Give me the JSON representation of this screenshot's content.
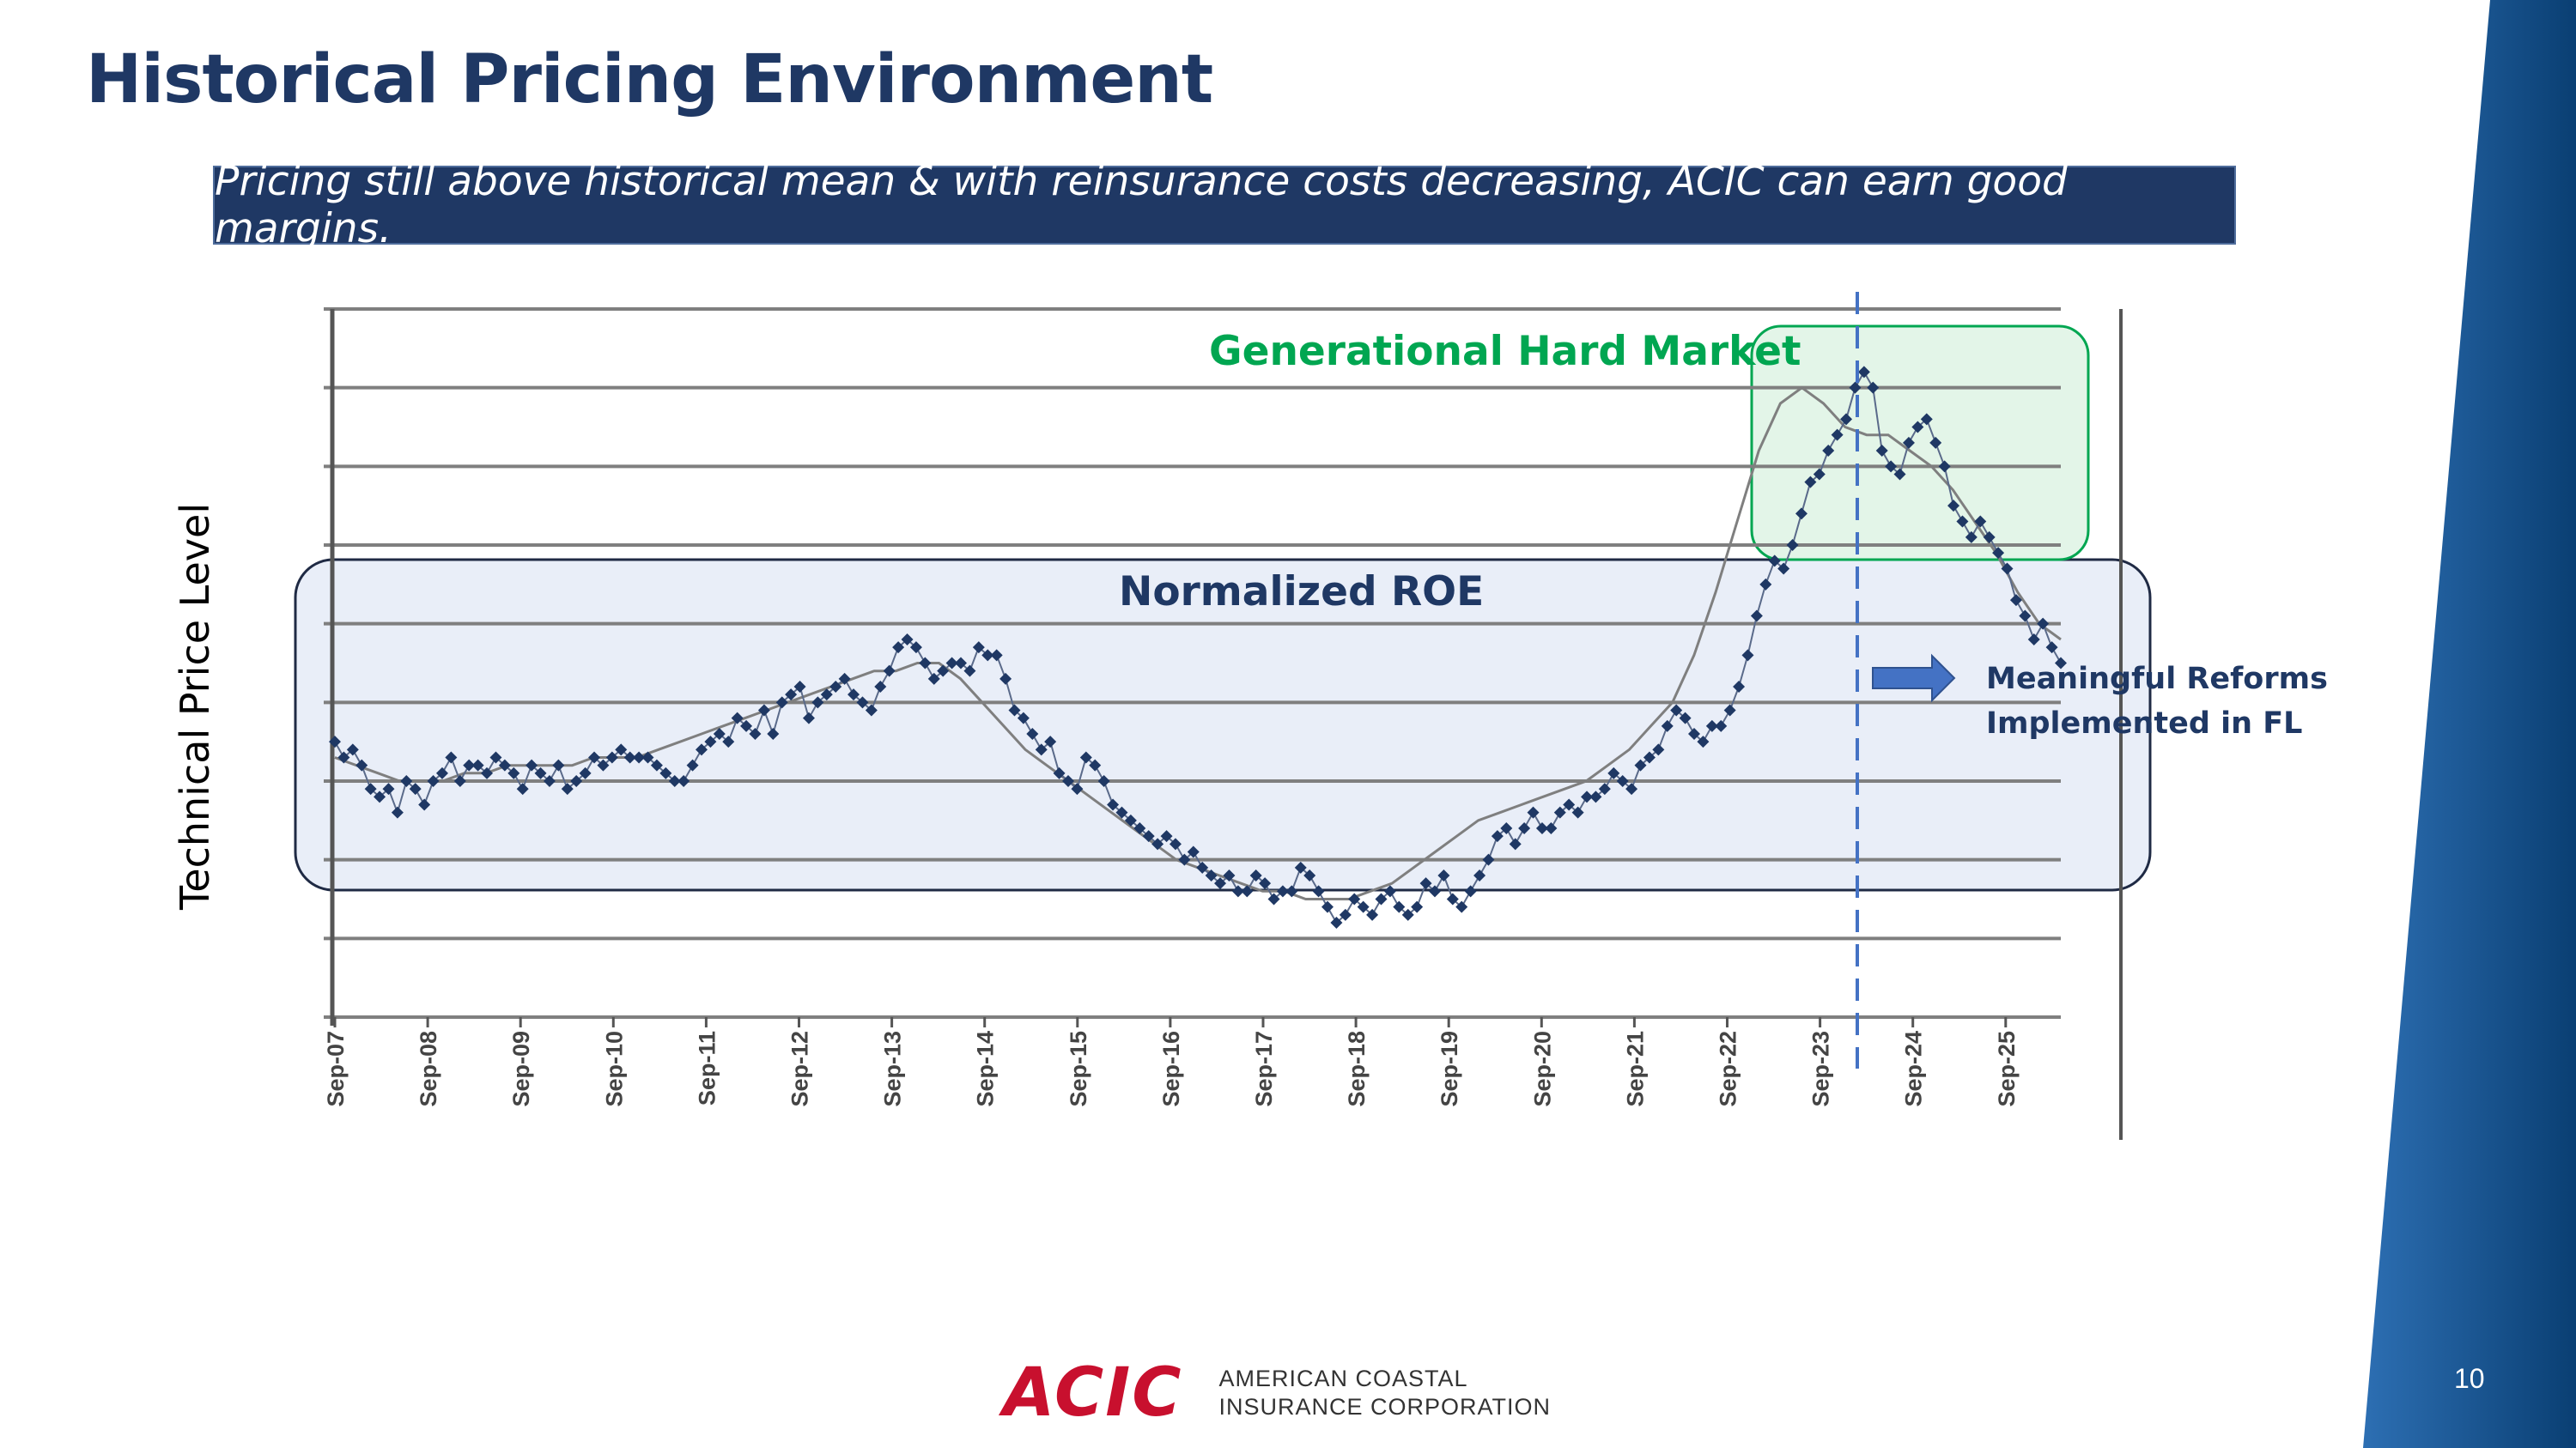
{
  "slide": {
    "title": "Historical Pricing Environment",
    "banner": "Pricing still above historical mean & with reinsurance costs decreasing, ACIC can earn good margins.",
    "page_number": "10",
    "logo_mark": "ACIC",
    "logo_line1": "AMERICAN COASTAL",
    "logo_line2": "INSURANCE CORPORATION"
  },
  "annotations": {
    "hard_market": "Generational Hard Market",
    "normalized_roe": "Normalized ROE",
    "reforms": "Meaningful Reforms Implemented in FL",
    "reforms_line1": "Meaningful Reforms",
    "reforms_line2": "Implemented in FL"
  },
  "colors": {
    "title": "#1f3864",
    "banner_bg": "#1f3864",
    "series_markers": "#1f3864",
    "moving_average": "#7f7f7f",
    "hard_market_box": "#00a651",
    "roe_box": "#e9eef8",
    "reforms_line": "#4472c4",
    "arrow": "#4472c4",
    "brand_red": "#c8102e",
    "side_band": "#0b4f8a"
  },
  "chart_data": {
    "type": "line",
    "title": "",
    "ylabel": "Technical Price Level",
    "xlabel": "",
    "x_ticks": [
      "Sep-07",
      "Sep-08",
      "Sep-09",
      "Sep-10",
      "Sep-11",
      "Sep-12",
      "Sep-13",
      "Sep-14",
      "Sep-15",
      "Sep-16",
      "Sep-17",
      "Sep-18",
      "Sep-19",
      "Sep-20",
      "Sep-21",
      "Sep-22",
      "Sep-23",
      "Sep-24",
      "Sep-25"
    ],
    "x_range": [
      "Sep-07",
      "Mar-26"
    ],
    "y_ticks_labeled": false,
    "y_range_index": [
      0,
      9
    ],
    "grid_lines": 9,
    "grid": true,
    "series": [
      {
        "name": "",
        "style": "markers-line",
        "values": [
          3.5,
          3.3,
          3.4,
          3.2,
          2.9,
          2.8,
          2.9,
          2.6,
          3.0,
          2.9,
          2.7,
          3.0,
          3.1,
          3.3,
          3.0,
          3.2,
          3.2,
          3.1,
          3.3,
          3.2,
          3.1,
          2.9,
          3.2,
          3.1,
          3.0,
          3.2,
          2.9,
          3.0,
          3.1,
          3.3,
          3.2,
          3.3,
          3.4,
          3.3,
          3.3,
          3.3,
          3.2,
          3.1,
          3.0,
          3.0,
          3.2,
          3.4,
          3.5,
          3.6,
          3.5,
          3.8,
          3.7,
          3.6,
          3.9,
          3.6,
          4.0,
          4.1,
          4.2,
          3.8,
          4.0,
          4.1,
          4.2,
          4.3,
          4.1,
          4.0,
          3.9,
          4.2,
          4.4,
          4.7,
          4.8,
          4.7,
          4.5,
          4.3,
          4.4,
          4.5,
          4.5,
          4.4,
          4.7,
          4.6,
          4.6,
          4.3,
          3.9,
          3.8,
          3.6,
          3.4,
          3.5,
          3.1,
          3.0,
          2.9,
          3.3,
          3.2,
          3.0,
          2.7,
          2.6,
          2.5,
          2.4,
          2.3,
          2.2,
          2.3,
          2.2,
          2.0,
          2.1,
          1.9,
          1.8,
          1.7,
          1.8,
          1.6,
          1.6,
          1.8,
          1.7,
          1.5,
          1.6,
          1.6,
          1.9,
          1.8,
          1.6,
          1.4,
          1.2,
          1.3,
          1.5,
          1.4,
          1.3,
          1.5,
          1.6,
          1.4,
          1.3,
          1.4,
          1.7,
          1.6,
          1.8,
          1.5,
          1.4,
          1.6,
          1.8,
          2.0,
          2.3,
          2.4,
          2.2,
          2.4,
          2.6,
          2.4,
          2.4,
          2.6,
          2.7,
          2.6,
          2.8,
          2.8,
          2.9,
          3.1,
          3.0,
          2.9,
          3.2,
          3.3,
          3.4,
          3.7,
          3.9,
          3.8,
          3.6,
          3.5,
          3.7,
          3.7,
          3.9,
          4.2,
          4.6,
          5.1,
          5.5,
          5.8,
          5.7,
          6.0,
          6.4,
          6.8,
          6.9,
          7.2,
          7.4,
          7.6,
          8.0,
          8.2,
          8.0,
          7.2,
          7.0,
          6.9,
          7.3,
          7.5,
          7.6,
          7.3,
          7.0,
          6.5,
          6.3,
          6.1,
          6.3,
          6.1,
          5.9,
          5.7,
          5.3,
          5.1,
          4.8,
          5.0,
          4.7,
          4.5
        ]
      },
      {
        "name": "",
        "style": "moving-average",
        "values": [
          3.3,
          3.2,
          3.1,
          3.0,
          3.0,
          3.0,
          3.1,
          3.1,
          3.2,
          3.2,
          3.2,
          3.2,
          3.3,
          3.3,
          3.3,
          3.4,
          3.5,
          3.6,
          3.7,
          3.8,
          3.9,
          4.0,
          4.1,
          4.2,
          4.3,
          4.4,
          4.4,
          4.5,
          4.5,
          4.3,
          4.0,
          3.7,
          3.4,
          3.2,
          3.0,
          2.8,
          2.6,
          2.4,
          2.2,
          2.0,
          1.9,
          1.8,
          1.7,
          1.6,
          1.6,
          1.5,
          1.5,
          1.5,
          1.6,
          1.7,
          1.9,
          2.1,
          2.3,
          2.5,
          2.6,
          2.7,
          2.8,
          2.9,
          3.0,
          3.2,
          3.4,
          3.7,
          4.0,
          4.6,
          5.4,
          6.3,
          7.2,
          7.8,
          8.0,
          7.8,
          7.5,
          7.4,
          7.4,
          7.2,
          7.0,
          6.7,
          6.3,
          5.9,
          5.4,
          5.0,
          4.8
        ]
      }
    ],
    "annotations": [
      {
        "text": "Generational Hard Market",
        "x_range": [
          "Sep-22",
          "Sep-25"
        ],
        "color": "#00a651"
      },
      {
        "text": "Normalized ROE",
        "x_range": [
          "Sep-07",
          "Mar-26"
        ],
        "band": true
      },
      {
        "text": "Meaningful Reforms Implemented in FL",
        "x": "Jan-24",
        "line": "dashed vertical"
      }
    ]
  }
}
